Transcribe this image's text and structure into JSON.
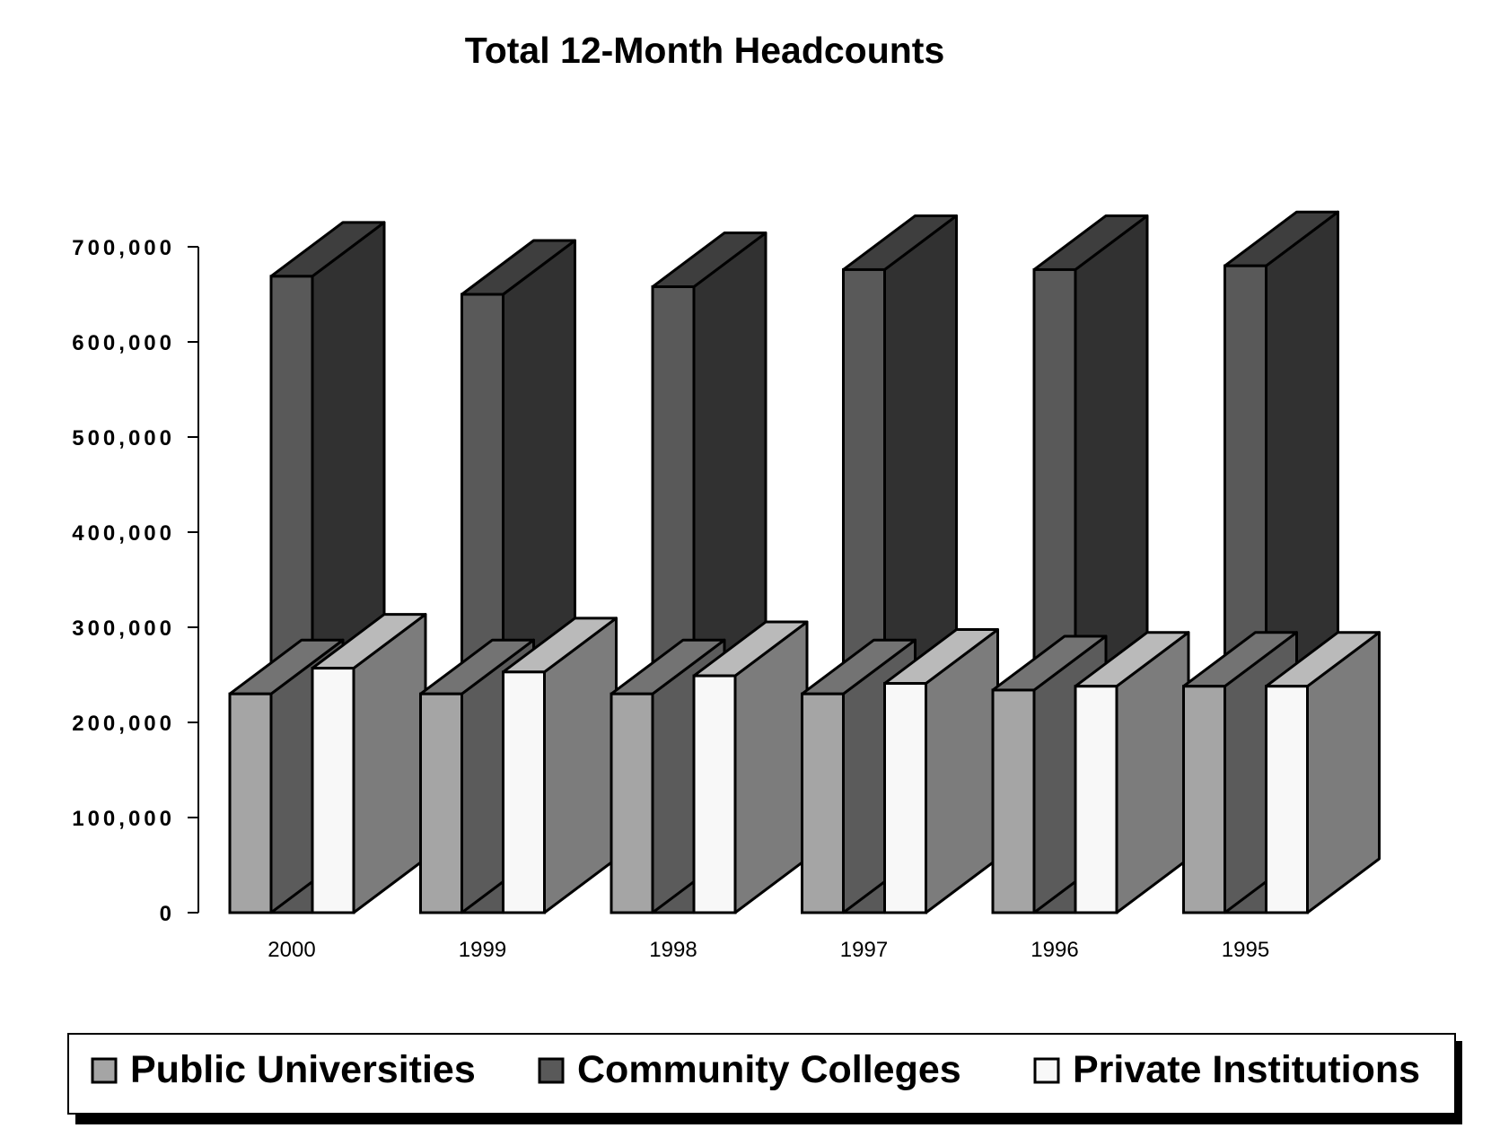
{
  "chart_data": {
    "type": "bar",
    "title": "Total 12-Month Headcounts",
    "xlabel": "",
    "ylabel": "",
    "ylim": [
      0,
      700000
    ],
    "yticks": [
      0,
      100000,
      200000,
      300000,
      400000,
      500000,
      600000,
      700000
    ],
    "ytick_labels": [
      "0",
      "100,000",
      "200,000",
      "300,000",
      "400,000",
      "500,000",
      "600,000",
      "700,000"
    ],
    "categories": [
      "2000",
      "1999",
      "1998",
      "1997",
      "1996",
      "1995"
    ],
    "series": [
      {
        "name": "Public Universities",
        "color": "#a5a5a5",
        "values": [
          230000,
          230000,
          230000,
          230000,
          234000,
          238000
        ]
      },
      {
        "name": "Community Colleges",
        "color": "#595959",
        "values": [
          669000,
          650000,
          658000,
          676000,
          676000,
          680000
        ]
      },
      {
        "name": "Private Institutions",
        "color": "#f8f8f8",
        "values": [
          257000,
          253000,
          249000,
          241000,
          238000,
          238000
        ]
      }
    ],
    "grid": false,
    "three_d": true,
    "legend_position": "bottom"
  }
}
